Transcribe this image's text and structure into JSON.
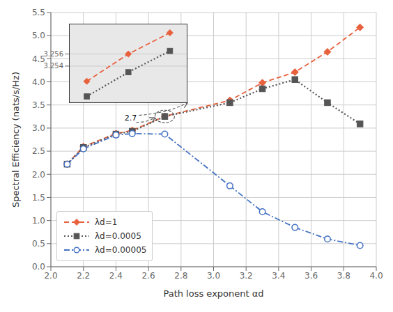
{
  "chart_data": [
    {
      "type": "line",
      "x_label": "Path loss exponent αd",
      "y_label": "Spectral Efficiency (nats/s/Hz)",
      "x": [
        2.1,
        2.2,
        2.4,
        2.5,
        2.7,
        3.1,
        3.3,
        3.5,
        3.7,
        3.9
      ],
      "series": [
        {
          "name": "λd=1",
          "color": "#E8603C",
          "marker": "diamond",
          "line_style": "dashed",
          "values": [
            2.22,
            2.6,
            2.88,
            2.95,
            3.255,
            3.6,
            3.98,
            4.21,
            4.65,
            5.18
          ]
        },
        {
          "name": "λd=0.0005",
          "color": "#555555",
          "marker": "square",
          "line_style": "dotted",
          "values": [
            2.22,
            2.58,
            2.87,
            2.93,
            3.252,
            3.55,
            3.85,
            4.05,
            3.55,
            3.09
          ]
        },
        {
          "name": "λd=0.00005",
          "color": "#4472C4",
          "marker": "open_circle",
          "line_style": "dashdot",
          "values": [
            2.22,
            2.55,
            2.85,
            2.88,
            2.87,
            1.75,
            1.19,
            0.85,
            0.6,
            0.46
          ]
        }
      ],
      "xlim": [
        2.0,
        4.0
      ],
      "ylim": [
        0,
        5.5
      ],
      "xticks": [
        {
          "value": 2.0,
          "label": "2.0"
        },
        2.2,
        2.4,
        2.6,
        2.8,
        {
          "value": 3.0,
          "label": "3.0"
        },
        3.2,
        3.4,
        3.6,
        3.8,
        {
          "value": 4.0,
          "label": "4.0"
        }
      ],
      "yticks": [
        {
          "value": 0,
          "label": "0.0"
        },
        0.5,
        {
          "value": 1.0,
          "label": "1.0"
        },
        1.5,
        {
          "value": 2.0,
          "label": "2.0"
        },
        2.5,
        {
          "value": 3.0,
          "label": "3.0"
        },
        3.5,
        {
          "value": 4.0,
          "label": "4.0"
        },
        4.5,
        {
          "value": 5.0,
          "label": "5.0"
        },
        5.5
      ],
      "grid": true,
      "legend": "lower left",
      "annotations": [
        {
          "text": "2.7",
          "x": 2.7,
          "y": 3.252,
          "color": "#555555"
        }
      ]
    },
    {
      "type": "line",
      "x": [
        2.63,
        2.7,
        2.77
      ],
      "series": [
        {
          "color": "#E8603C",
          "marker": "diamond",
          "line_style": "dashed",
          "values": [
            3.2515,
            3.256,
            3.2595
          ]
        },
        {
          "color": "#555555",
          "marker": "square",
          "line_style": "dotted",
          "values": [
            3.249,
            3.253,
            3.2565
          ]
        }
      ],
      "xlim": [
        2.6,
        2.8
      ],
      "ylim": [
        3.248,
        3.261
      ],
      "xticks": [],
      "yticks": [
        3.254,
        3.256
      ],
      "grid": true,
      "tick_labels": "y"
    }
  ]
}
